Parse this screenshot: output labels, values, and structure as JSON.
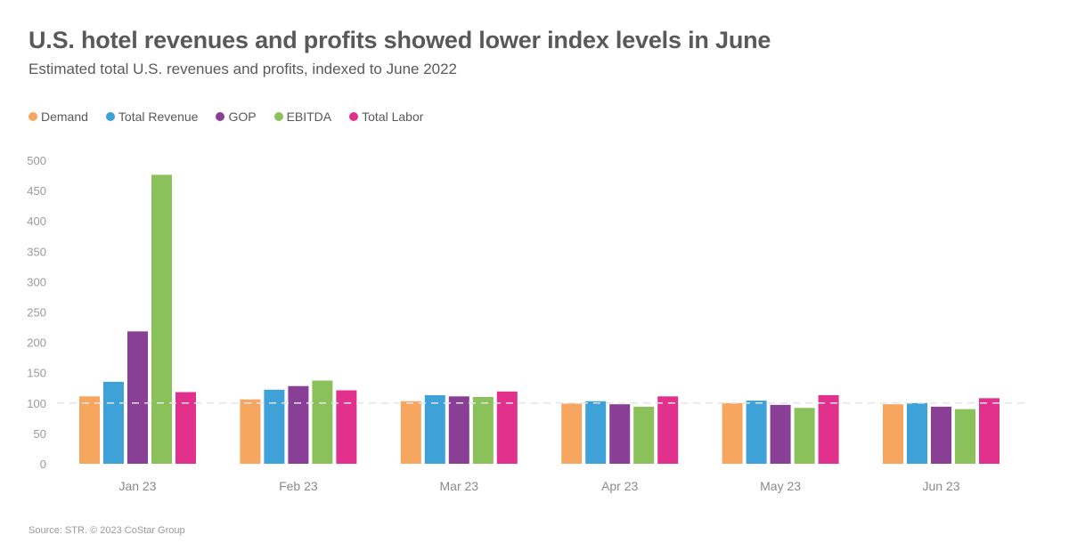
{
  "chart_data": {
    "type": "bar",
    "title": "U.S. hotel revenues and profits showed lower index levels in June",
    "subtitle": "Estimated total U.S. revenues and profits, indexed to June 2022",
    "categories": [
      "Jan 23",
      "Feb 23",
      "Mar 23",
      "Apr 23",
      "May 23",
      "Jun 23"
    ],
    "series": [
      {
        "name": "Demand",
        "color": "#F6A65E",
        "values": [
          111,
          106,
          103,
          99,
          100,
          98
        ]
      },
      {
        "name": "Total Revenue",
        "color": "#3EA2D8",
        "values": [
          135,
          122,
          113,
          103,
          104,
          100
        ]
      },
      {
        "name": "GOP",
        "color": "#8A3F96",
        "values": [
          218,
          128,
          111,
          98,
          97,
          94
        ]
      },
      {
        "name": "EBITDA",
        "color": "#8BC15A",
        "values": [
          476,
          137,
          110,
          94,
          92,
          90
        ]
      },
      {
        "name": "Total Labor",
        "color": "#E2318D",
        "values": [
          118,
          121,
          119,
          111,
          113,
          108
        ]
      }
    ],
    "ylim": [
      0,
      500
    ],
    "yticks": [
      0,
      50,
      100,
      150,
      200,
      250,
      300,
      350,
      400,
      450,
      500
    ],
    "reference_line": 100,
    "grid": false,
    "legend_position": "top-left",
    "xlabel": "",
    "ylabel": ""
  },
  "source": "Source: STR. © 2023 CoStar Group"
}
